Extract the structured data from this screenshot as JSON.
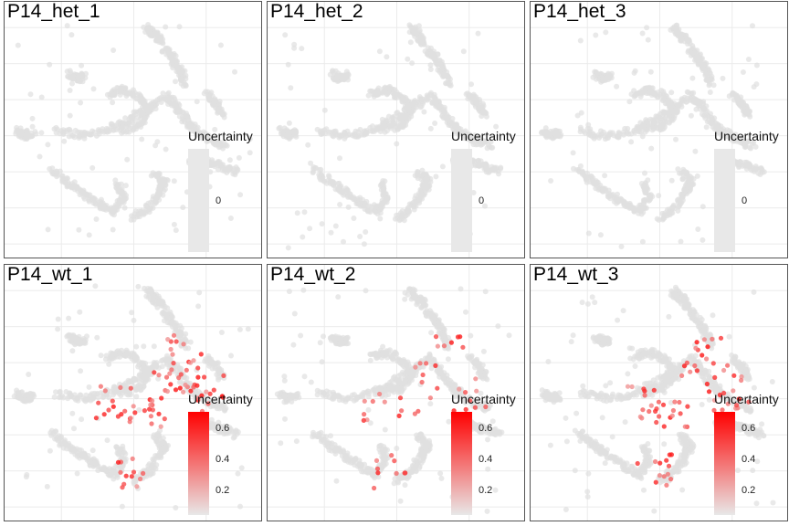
{
  "chart_data": [
    {
      "type": "scatter",
      "title": "P14_het_1",
      "legend_title": "Uncertainty",
      "colorbar_ticks": [
        "0"
      ],
      "uncertainty_range": [
        0,
        0
      ],
      "highlight_density": 0,
      "seed": 11
    },
    {
      "type": "scatter",
      "title": "P14_het_2",
      "legend_title": "Uncertainty",
      "colorbar_ticks": [
        "0"
      ],
      "uncertainty_range": [
        0,
        0
      ],
      "highlight_density": 0,
      "seed": 23
    },
    {
      "type": "scatter",
      "title": "P14_het_3",
      "legend_title": "Uncertainty",
      "colorbar_ticks": [
        "0"
      ],
      "uncertainty_range": [
        0,
        0
      ],
      "highlight_density": 0,
      "seed": 37
    },
    {
      "type": "scatter",
      "title": "P14_wt_1",
      "legend_title": "Uncertainty",
      "colorbar_ticks": [
        "0.6",
        "0.4",
        "0.2"
      ],
      "uncertainty_range": [
        0.1,
        0.7
      ],
      "highlight_density": 1.0,
      "seed": 41
    },
    {
      "type": "scatter",
      "title": "P14_wt_2",
      "legend_title": "Uncertainty",
      "colorbar_ticks": [
        "0.6",
        "0.4",
        "0.2"
      ],
      "uncertainty_range": [
        0.1,
        0.65
      ],
      "highlight_density": 0.5,
      "seed": 53
    },
    {
      "type": "scatter",
      "title": "P14_wt_3",
      "legend_title": "Uncertainty",
      "colorbar_ticks": [
        "0.6",
        "0.4",
        "0.2"
      ],
      "uncertainty_range": [
        0.1,
        0.7
      ],
      "highlight_density": 0.85,
      "seed": 67
    }
  ],
  "colors": {
    "background_points": "#e0e0e0",
    "low": "#e8e8e8",
    "high": "#ff0000",
    "grid": "#ebebeb",
    "border": "#555555"
  }
}
